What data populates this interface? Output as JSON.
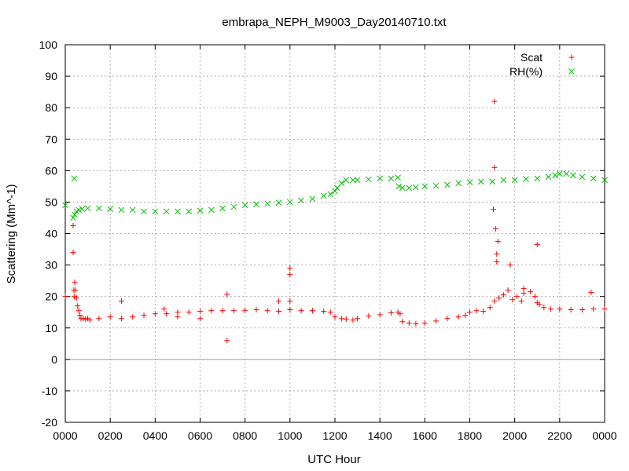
{
  "chart_data": {
    "type": "scatter",
    "title": "embrapa_NEPH_M9003_Day20140710.txt",
    "xlabel": "UTC Hour",
    "ylabel": "Scattering (Mm^-1)",
    "xlim": [
      0,
      24
    ],
    "ylim": [
      -20,
      100
    ],
    "grid": true,
    "legend_position": "top-right",
    "x_tick_labels": [
      "0000",
      "0200",
      "0400",
      "0600",
      "0800",
      "1000",
      "1200",
      "1400",
      "1600",
      "1800",
      "2000",
      "2200",
      "0000"
    ],
    "y_ticks": [
      -20,
      -10,
      0,
      10,
      20,
      30,
      40,
      50,
      60,
      70,
      80,
      90,
      100
    ],
    "colors": {
      "Scat": "#ff0000",
      "RH(%)": "#00c000",
      "zero_line": "#a0a0a0",
      "grid": "#a0a0a0"
    },
    "series": [
      {
        "name": "Scat",
        "marker": "plus",
        "x": [
          0.0,
          0.35,
          0.42,
          0.45,
          0.5,
          0.55,
          0.6,
          0.65,
          0.7,
          0.8,
          0.9,
          1.0,
          1.5,
          2.0,
          2.5,
          3.0,
          3.5,
          4.0,
          4.5,
          5.0,
          5.5,
          6.0,
          6.5,
          7.0,
          7.5,
          8.0,
          8.5,
          9.0,
          9.5,
          10.0,
          10.5,
          11.0,
          11.5,
          11.8,
          12.0,
          12.3,
          12.5,
          12.8,
          13.0,
          13.5,
          14.0,
          14.5,
          14.8,
          14.9,
          15.0,
          15.3,
          15.6,
          16.0,
          16.5,
          17.0,
          17.5,
          17.8,
          18.0,
          18.3,
          18.6,
          18.9,
          19.1,
          19.3,
          19.5,
          19.7,
          19.9,
          20.1,
          20.4,
          20.7,
          20.9,
          21.0,
          21.1,
          21.3,
          21.6,
          22.0,
          22.5,
          23.0,
          23.5,
          24.0,
          0.35,
          0.38,
          0.4,
          2.5,
          4.4,
          5.0,
          6.0,
          7.2,
          7.2,
          9.5,
          10.0,
          10.0,
          10.0,
          19.05,
          19.1,
          19.1,
          19.15,
          19.2,
          19.2,
          19.25,
          19.8,
          20.3,
          20.4,
          21.0,
          23.4,
          1.1
        ],
        "y": [
          20.0,
          42.5,
          24.5,
          22.0,
          19.5,
          17.0,
          15.5,
          14.0,
          13.0,
          13.0,
          12.8,
          13.0,
          13.0,
          13.5,
          13.0,
          13.5,
          14.0,
          14.5,
          14.5,
          15.0,
          15.0,
          15.3,
          15.5,
          15.5,
          15.5,
          15.6,
          15.8,
          15.5,
          15.3,
          15.8,
          15.5,
          15.5,
          15.3,
          15.0,
          13.5,
          13.0,
          12.8,
          12.5,
          13.0,
          13.8,
          14.2,
          14.8,
          15.0,
          14.5,
          12.0,
          11.5,
          11.3,
          11.5,
          12.2,
          13.0,
          13.5,
          14.0,
          15.0,
          15.5,
          15.3,
          16.5,
          18.5,
          19.5,
          20.5,
          22.0,
          19.0,
          20.0,
          21.0,
          21.5,
          20.0,
          18.0,
          17.5,
          16.5,
          16.0,
          16.0,
          15.8,
          15.8,
          16.0,
          16.0,
          34.0,
          22.0,
          20.0,
          18.5,
          16.0,
          13.5,
          13.0,
          20.7,
          6.0,
          18.5,
          29.0,
          27.0,
          18.5,
          47.7,
          82.0,
          61.0,
          41.5,
          33.5,
          31.0,
          37.5,
          30.0,
          18.5,
          22.5,
          36.5,
          21.3,
          12.5
        ]
      },
      {
        "name": "RH(%)",
        "marker": "cross",
        "x": [
          0.0,
          0.35,
          0.42,
          0.5,
          0.6,
          0.75,
          1.0,
          1.5,
          2.0,
          2.5,
          3.0,
          3.5,
          4.0,
          4.5,
          5.0,
          5.5,
          6.0,
          6.5,
          7.0,
          7.5,
          8.0,
          8.5,
          9.0,
          9.5,
          10.0,
          10.5,
          11.0,
          11.5,
          11.8,
          12.0,
          12.1,
          12.3,
          12.5,
          12.8,
          13.0,
          13.5,
          14.0,
          14.5,
          14.8,
          14.85,
          15.0,
          15.3,
          15.6,
          16.0,
          16.5,
          17.0,
          17.5,
          18.0,
          18.5,
          19.0,
          19.5,
          20.0,
          20.5,
          21.0,
          21.5,
          21.8,
          22.0,
          22.3,
          22.6,
          23.0,
          23.5,
          24.0,
          0.4
        ],
        "y": [
          49.0,
          45.0,
          46.0,
          47.0,
          47.5,
          47.8,
          48.0,
          48.0,
          47.8,
          47.5,
          47.5,
          47.0,
          47.0,
          47.0,
          47.0,
          47.0,
          47.3,
          47.5,
          48.0,
          48.5,
          49.0,
          49.3,
          49.5,
          49.8,
          50.0,
          50.5,
          51.0,
          52.0,
          52.5,
          53.5,
          54.5,
          56.0,
          57.0,
          57.0,
          57.0,
          57.2,
          57.5,
          57.5,
          57.8,
          55.0,
          54.5,
          54.5,
          54.7,
          55.0,
          55.2,
          55.5,
          56.0,
          56.3,
          56.5,
          56.5,
          57.0,
          57.0,
          57.3,
          57.5,
          58.0,
          58.5,
          59.0,
          59.0,
          58.5,
          58.0,
          57.5,
          57.0,
          57.5
        ]
      }
    ]
  }
}
